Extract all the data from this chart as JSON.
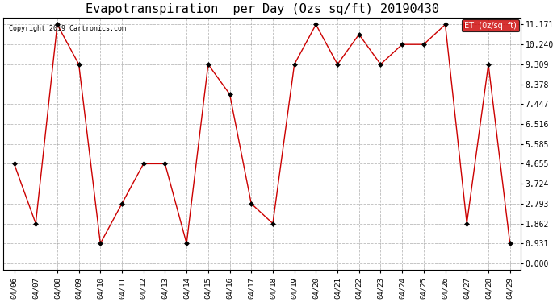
{
  "title": "Evapotranspiration  per Day (Ozs sq/ft) 20190430",
  "copyright": "Copyright 2019 Cartronics.com",
  "legend_label": "ET  (0z/sq  ft)",
  "x_labels": [
    "04/06",
    "04/07",
    "04/08",
    "04/09",
    "04/10",
    "04/11",
    "04/12",
    "04/13",
    "04/14",
    "04/15",
    "04/16",
    "04/17",
    "04/18",
    "04/19",
    "04/20",
    "04/21",
    "04/22",
    "04/23",
    "04/24",
    "04/25",
    "04/26",
    "04/27",
    "04/28",
    "04/29"
  ],
  "y_values": [
    4.655,
    1.862,
    11.171,
    9.309,
    0.931,
    2.793,
    4.655,
    4.655,
    0.931,
    9.309,
    7.913,
    2.793,
    1.862,
    9.309,
    11.171,
    9.309,
    10.709,
    9.309,
    10.24,
    10.24,
    11.171,
    1.862,
    9.309,
    0.931
  ],
  "y_ticks": [
    0.0,
    0.931,
    1.862,
    2.793,
    3.724,
    4.655,
    5.585,
    6.516,
    7.447,
    8.378,
    9.309,
    10.24,
    11.171
  ],
  "line_color": "#cc0000",
  "marker_color": "#000000",
  "background_color": "#ffffff",
  "grid_color": "#aaaaaa",
  "title_fontsize": 11,
  "legend_bg": "#cc0000",
  "legend_text_color": "#ffffff"
}
